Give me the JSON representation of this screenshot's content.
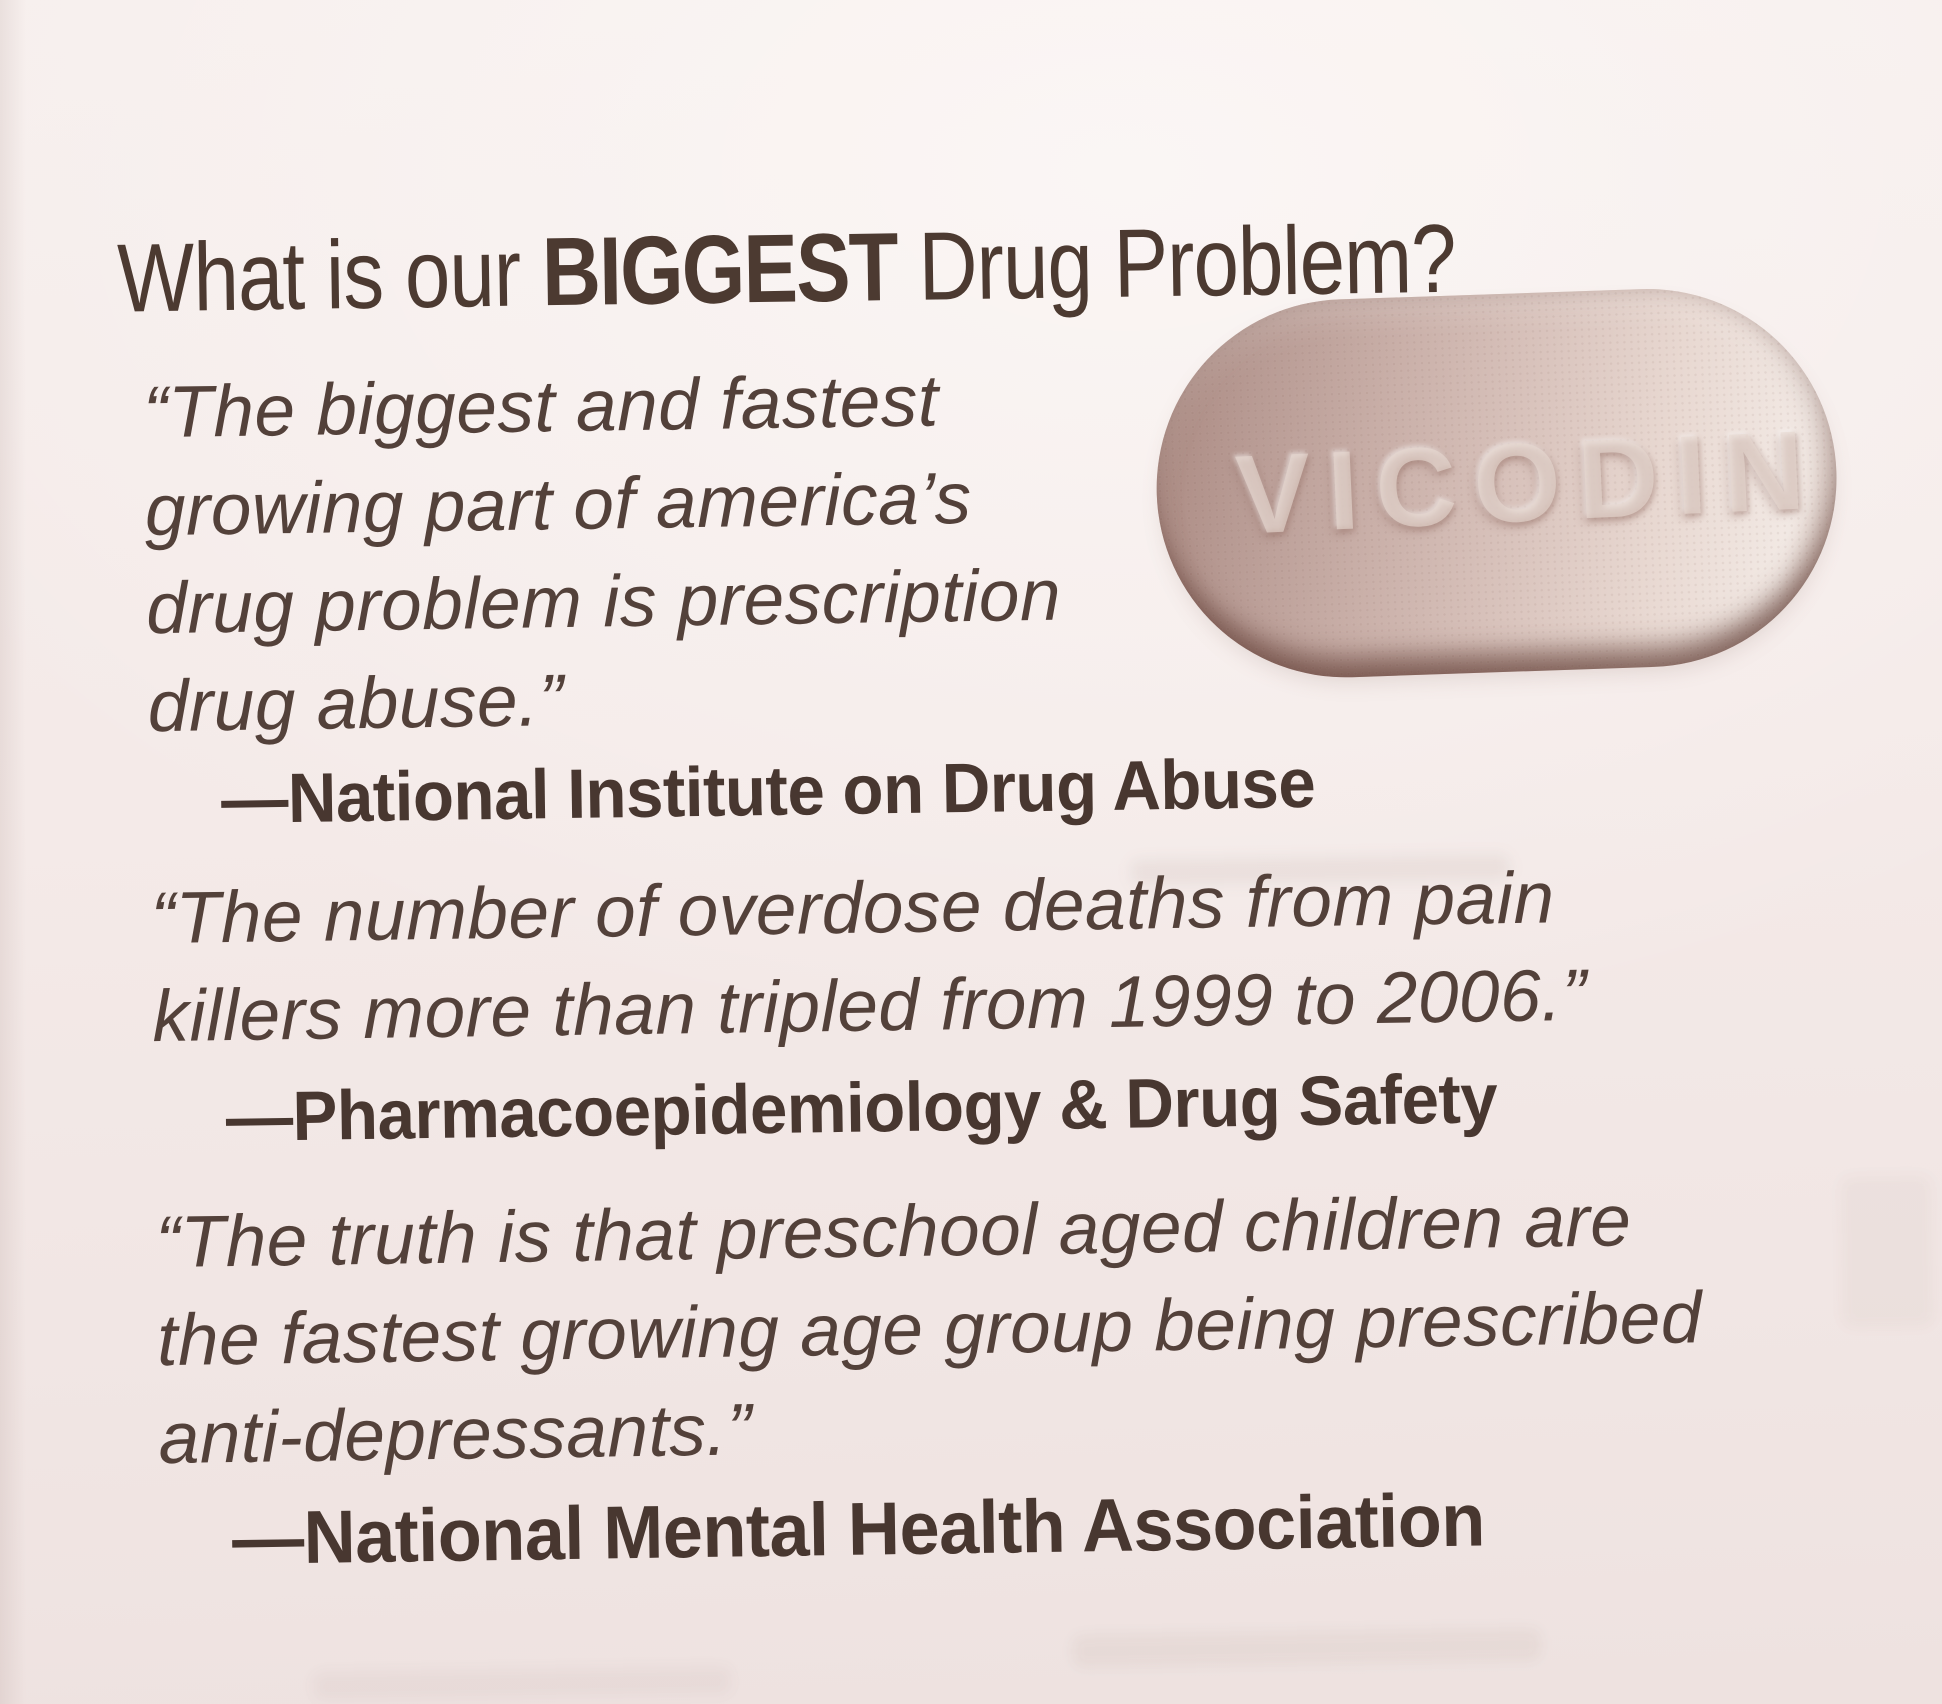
{
  "page": {
    "heading": {
      "prefix": "What is our ",
      "bold": "BIGGEST",
      "suffix": " Drug Problem?"
    },
    "quotes": [
      {
        "lines": [
          "“The biggest and fastest",
          "growing part of america’s",
          "drug problem is prescription",
          "drug abuse.”"
        ],
        "attribution": "—National Institute on Drug Abuse"
      },
      {
        "lines": [
          "“The number of overdose deaths from pain",
          "killers more than tripled from 1999 to 2006.”"
        ],
        "attribution": "—Pharmacoepidemiology & Drug Safety"
      },
      {
        "lines": [
          "“The truth is that preschool aged children are",
          "the fastest growing age group being prescribed",
          "anti-depressants.”"
        ],
        "attribution": "—National Mental Health Association"
      }
    ],
    "pill": {
      "label": "VICODIN"
    },
    "colors": {
      "paper": "#f4ebe8",
      "ink": "#4c3a32",
      "pill_dark": "#a8867e",
      "pill_mid": "#d8c2bb",
      "pill_light": "#f2e9e4",
      "pill_rim": "#58342b",
      "pill_emboss": "#e6d8d1"
    }
  }
}
